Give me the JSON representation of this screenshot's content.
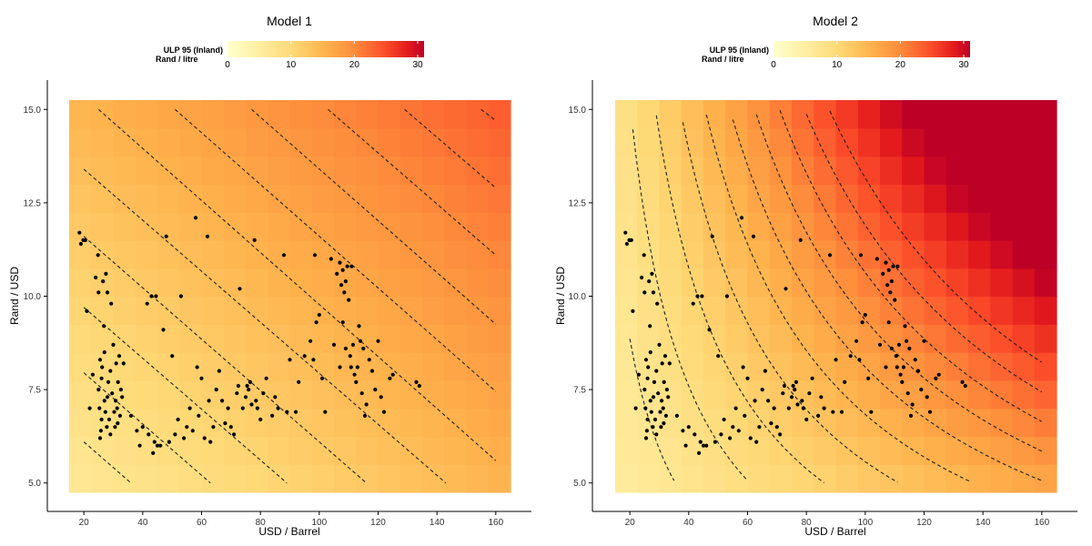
{
  "chart_data": [
    {
      "type": "heatmap",
      "title": "Model 1",
      "xlabel": "USD / Barrel",
      "ylabel": "Rand / USD",
      "xlim": [
        15,
        165
      ],
      "ylim": [
        4.75,
        15.25
      ],
      "x_ticks": [
        20,
        40,
        60,
        80,
        100,
        120,
        140,
        160
      ],
      "x_tick_labels": [
        "20",
        "40",
        "60",
        "80",
        "100",
        "120",
        "140",
        "160"
      ],
      "y_ticks": [
        5.0,
        7.5,
        10.0,
        12.5,
        15.0
      ],
      "y_tick_labels": [
        "5.0",
        "7.5",
        "10.0",
        "12.5",
        "15.0"
      ],
      "legend": {
        "title_line1": "ULP 95 (Inland)",
        "title_line2": "Rand / litre",
        "range": [
          0,
          31
        ],
        "ticks": [
          0,
          10,
          20,
          30
        ],
        "tick_labels": [
          "0",
          "10",
          "20",
          "30"
        ],
        "placement": "top"
      },
      "fill_model": "additive",
      "contour_segments": [
        [
          [
            20,
            6.1
          ],
          [
            36,
            5.0
          ]
        ],
        [
          [
            20,
            7.95
          ],
          [
            63,
            5.0
          ]
        ],
        [
          [
            20,
            9.7
          ],
          [
            89,
            5.0
          ]
        ],
        [
          [
            20,
            11.6
          ],
          [
            116,
            5.0
          ]
        ],
        [
          [
            20,
            13.4
          ],
          [
            143,
            5.0
          ]
        ],
        [
          [
            25,
            15.0
          ],
          [
            160,
            5.6
          ]
        ],
        [
          [
            51,
            15.0
          ],
          [
            160,
            7.45
          ]
        ],
        [
          [
            77,
            15.0
          ],
          [
            160,
            9.25
          ]
        ],
        [
          [
            103,
            15.0
          ],
          [
            160,
            11.1
          ]
        ],
        [
          [
            129,
            15.0
          ],
          [
            160,
            12.9
          ]
        ],
        [
          [
            155,
            15.0
          ],
          [
            160,
            14.7
          ]
        ]
      ],
      "points": [
        [
          18.5,
          11.7
        ],
        [
          19,
          11.4
        ],
        [
          19.8,
          11.5
        ],
        [
          20.5,
          11.5
        ],
        [
          21,
          9.6
        ],
        [
          22,
          7.0
        ],
        [
          23,
          7.9
        ],
        [
          24,
          10.5
        ],
        [
          24.8,
          11.1
        ],
        [
          25,
          10.1
        ],
        [
          25.5,
          6.2
        ],
        [
          25.8,
          6.4
        ],
        [
          26,
          7.8
        ],
        [
          26.2,
          8.1
        ],
        [
          26.5,
          10.4
        ],
        [
          26.8,
          9.2
        ],
        [
          27,
          7.2
        ],
        [
          27.3,
          6.9
        ],
        [
          27.5,
          10.6
        ],
        [
          28,
          10.1
        ],
        [
          28.3,
          7.7
        ],
        [
          28.6,
          6.7
        ],
        [
          29,
          8.0
        ],
        [
          29.3,
          9.8
        ],
        [
          29.6,
          7.4
        ],
        [
          30,
          8.7
        ],
        [
          30.3,
          6.9
        ],
        [
          30.6,
          6.5
        ],
        [
          31,
          8.2
        ],
        [
          31.3,
          7.0
        ],
        [
          31.6,
          7.7
        ],
        [
          32,
          8.4
        ],
        [
          32.3,
          6.8
        ],
        [
          32.6,
          7.5
        ],
        [
          33,
          7.3
        ],
        [
          33.5,
          8.2
        ],
        [
          25,
          7.5
        ],
        [
          25.3,
          7.0
        ],
        [
          26,
          6.7
        ],
        [
          27,
          8.5
        ],
        [
          28,
          7.3
        ],
        [
          29,
          6.3
        ],
        [
          30.8,
          7.2
        ],
        [
          31.5,
          6.6
        ],
        [
          25.5,
          8.3
        ],
        [
          27.8,
          6.5
        ],
        [
          36,
          6.8
        ],
        [
          38,
          6.4
        ],
        [
          39,
          6.0
        ],
        [
          40,
          6.5
        ],
        [
          41.5,
          9.8
        ],
        [
          42,
          6.3
        ],
        [
          43,
          10.0
        ],
        [
          43.5,
          5.8
        ],
        [
          44,
          6.1
        ],
        [
          44.5,
          10.0
        ],
        [
          45,
          6.0
        ],
        [
          46,
          6.0
        ],
        [
          47,
          9.1
        ],
        [
          48,
          11.6
        ],
        [
          49,
          6.1
        ],
        [
          50,
          8.4
        ],
        [
          51,
          6.3
        ],
        [
          52,
          6.7
        ],
        [
          53,
          10.0
        ],
        [
          54,
          6.2
        ],
        [
          55,
          6.5
        ],
        [
          56,
          7.0
        ],
        [
          57,
          6.4
        ],
        [
          58,
          12.1
        ],
        [
          58.5,
          8.1
        ],
        [
          59,
          6.8
        ],
        [
          60,
          7.8
        ],
        [
          61,
          6.2
        ],
        [
          62,
          11.6
        ],
        [
          62.5,
          7.2
        ],
        [
          63,
          6.1
        ],
        [
          64,
          6.5
        ],
        [
          65,
          7.5
        ],
        [
          66,
          8.0
        ],
        [
          67,
          7.2
        ],
        [
          68,
          6.6
        ],
        [
          69,
          7.0
        ],
        [
          70,
          6.5
        ],
        [
          71,
          6.3
        ],
        [
          72,
          7.4
        ],
        [
          72.5,
          7.6
        ],
        [
          73,
          10.2
        ],
        [
          74,
          7.0
        ],
        [
          75,
          7.3
        ],
        [
          75.5,
          7.6
        ],
        [
          76,
          7.5
        ],
        [
          76.5,
          7.7
        ],
        [
          77,
          7.1
        ],
        [
          78,
          11.5
        ],
        [
          78.5,
          7.2
        ],
        [
          79,
          7.0
        ],
        [
          80,
          6.7
        ],
        [
          81,
          7.4
        ],
        [
          82,
          7.8
        ],
        [
          84,
          6.8
        ],
        [
          85,
          7.3
        ],
        [
          86,
          7.0
        ],
        [
          88,
          11.1
        ],
        [
          89,
          6.9
        ],
        [
          90,
          8.3
        ],
        [
          92,
          6.9
        ],
        [
          93,
          7.7
        ],
        [
          95,
          8.4
        ],
        [
          97,
          8.8
        ],
        [
          98,
          8.3
        ],
        [
          98.5,
          11.1
        ],
        [
          99,
          9.3
        ],
        [
          100,
          9.5
        ],
        [
          101,
          7.8
        ],
        [
          102,
          6.9
        ],
        [
          104,
          11.0
        ],
        [
          105,
          8.7
        ],
        [
          106,
          10.6
        ],
        [
          107,
          10.9
        ],
        [
          107.5,
          10.3
        ],
        [
          108,
          10.7
        ],
        [
          108.5,
          10.1
        ],
        [
          109,
          10.4
        ],
        [
          109.5,
          10.8
        ],
        [
          110,
          9.9
        ],
        [
          110.5,
          8.4
        ],
        [
          111,
          10.8
        ],
        [
          111.5,
          8.7
        ],
        [
          112,
          7.9
        ],
        [
          112.5,
          7.7
        ],
        [
          113,
          8.1
        ],
        [
          113.5,
          9.2
        ],
        [
          114,
          8.8
        ],
        [
          114.5,
          7.4
        ],
        [
          115,
          8.6
        ],
        [
          115.5,
          6.8
        ],
        [
          116,
          7.1
        ],
        [
          117,
          8.3
        ],
        [
          118,
          8.0
        ],
        [
          119,
          7.5
        ],
        [
          120,
          8.8
        ],
        [
          121,
          7.3
        ],
        [
          122,
          6.9
        ],
        [
          124,
          7.8
        ],
        [
          125,
          7.9
        ],
        [
          133,
          7.7
        ],
        [
          134,
          7.6
        ],
        [
          107,
          8.1
        ],
        [
          108,
          9.3
        ],
        [
          109,
          8.6
        ],
        [
          110.8,
          8.1
        ]
      ]
    },
    {
      "type": "heatmap",
      "title": "Model 2",
      "xlabel": "USD / Barrel",
      "ylabel": "Rand / USD",
      "xlim": [
        15,
        165
      ],
      "ylim": [
        4.75,
        15.25
      ],
      "x_ticks": [
        20,
        40,
        60,
        80,
        100,
        120,
        140,
        160
      ],
      "x_tick_labels": [
        "20",
        "40",
        "60",
        "80",
        "100",
        "120",
        "140",
        "160"
      ],
      "y_ticks": [
        5.0,
        7.5,
        10.0,
        12.5,
        15.0
      ],
      "y_tick_labels": [
        "5.0",
        "7.5",
        "10.0",
        "12.5",
        "15.0"
      ],
      "legend": {
        "title_line1": "ULP 95 (Inland)",
        "title_line2": "Rand / litre",
        "range": [
          0,
          31
        ],
        "ticks": [
          0,
          10,
          20,
          30
        ],
        "tick_labels": [
          "0",
          "10",
          "20",
          "30"
        ],
        "placement": "top"
      },
      "fill_model": "multiplicative",
      "contour_levels": [
        5,
        7,
        9,
        11,
        13,
        15,
        17,
        19,
        21,
        23,
        25
      ],
      "points": [
        [
          18.5,
          11.7
        ],
        [
          19,
          11.4
        ],
        [
          19.8,
          11.5
        ],
        [
          20.5,
          11.5
        ],
        [
          21,
          9.6
        ],
        [
          22,
          7.0
        ],
        [
          23,
          7.9
        ],
        [
          24,
          10.5
        ],
        [
          24.8,
          11.1
        ],
        [
          25,
          10.1
        ],
        [
          25.5,
          6.2
        ],
        [
          25.8,
          6.4
        ],
        [
          26,
          7.8
        ],
        [
          26.2,
          8.1
        ],
        [
          26.5,
          10.4
        ],
        [
          26.8,
          9.2
        ],
        [
          27,
          7.2
        ],
        [
          27.3,
          6.9
        ],
        [
          27.5,
          10.6
        ],
        [
          28,
          10.1
        ],
        [
          28.3,
          7.7
        ],
        [
          28.6,
          6.7
        ],
        [
          29,
          8.0
        ],
        [
          29.3,
          9.8
        ],
        [
          29.6,
          7.4
        ],
        [
          30,
          8.7
        ],
        [
          30.3,
          6.9
        ],
        [
          30.6,
          6.5
        ],
        [
          31,
          8.2
        ],
        [
          31.3,
          7.0
        ],
        [
          31.6,
          7.7
        ],
        [
          32,
          8.4
        ],
        [
          32.3,
          6.8
        ],
        [
          32.6,
          7.5
        ],
        [
          33,
          7.3
        ],
        [
          33.5,
          8.2
        ],
        [
          25,
          7.5
        ],
        [
          25.3,
          7.0
        ],
        [
          26,
          6.7
        ],
        [
          27,
          8.5
        ],
        [
          28,
          7.3
        ],
        [
          29,
          6.3
        ],
        [
          30.8,
          7.2
        ],
        [
          31.5,
          6.6
        ],
        [
          25.5,
          8.3
        ],
        [
          27.8,
          6.5
        ],
        [
          36,
          6.8
        ],
        [
          38,
          6.4
        ],
        [
          39,
          6.0
        ],
        [
          40,
          6.5
        ],
        [
          41.5,
          9.8
        ],
        [
          42,
          6.3
        ],
        [
          43,
          10.0
        ],
        [
          43.5,
          5.8
        ],
        [
          44,
          6.1
        ],
        [
          44.5,
          10.0
        ],
        [
          45,
          6.0
        ],
        [
          46,
          6.0
        ],
        [
          47,
          9.1
        ],
        [
          48,
          11.6
        ],
        [
          49,
          6.1
        ],
        [
          50,
          8.4
        ],
        [
          51,
          6.3
        ],
        [
          52,
          6.7
        ],
        [
          53,
          10.0
        ],
        [
          54,
          6.2
        ],
        [
          55,
          6.5
        ],
        [
          56,
          7.0
        ],
        [
          57,
          6.4
        ],
        [
          58,
          12.1
        ],
        [
          58.5,
          8.1
        ],
        [
          59,
          6.8
        ],
        [
          60,
          7.8
        ],
        [
          61,
          6.2
        ],
        [
          62,
          11.6
        ],
        [
          62.5,
          7.2
        ],
        [
          63,
          6.1
        ],
        [
          64,
          6.5
        ],
        [
          65,
          7.5
        ],
        [
          66,
          8.0
        ],
        [
          67,
          7.2
        ],
        [
          68,
          6.6
        ],
        [
          69,
          7.0
        ],
        [
          70,
          6.5
        ],
        [
          71,
          6.3
        ],
        [
          72,
          7.4
        ],
        [
          72.5,
          7.6
        ],
        [
          73,
          10.2
        ],
        [
          74,
          7.0
        ],
        [
          75,
          7.3
        ],
        [
          75.5,
          7.6
        ],
        [
          76,
          7.5
        ],
        [
          76.5,
          7.7
        ],
        [
          77,
          7.1
        ],
        [
          78,
          11.5
        ],
        [
          78.5,
          7.2
        ],
        [
          79,
          7.0
        ],
        [
          80,
          6.7
        ],
        [
          81,
          7.4
        ],
        [
          82,
          7.8
        ],
        [
          84,
          6.8
        ],
        [
          85,
          7.3
        ],
        [
          86,
          7.0
        ],
        [
          88,
          11.1
        ],
        [
          89,
          6.9
        ],
        [
          90,
          8.3
        ],
        [
          92,
          6.9
        ],
        [
          93,
          7.7
        ],
        [
          95,
          8.4
        ],
        [
          97,
          8.8
        ],
        [
          98,
          8.3
        ],
        [
          98.5,
          11.1
        ],
        [
          99,
          9.3
        ],
        [
          100,
          9.5
        ],
        [
          101,
          7.8
        ],
        [
          102,
          6.9
        ],
        [
          104,
          11.0
        ],
        [
          105,
          8.7
        ],
        [
          106,
          10.6
        ],
        [
          107,
          10.9
        ],
        [
          107.5,
          10.3
        ],
        [
          108,
          10.7
        ],
        [
          108.5,
          10.1
        ],
        [
          109,
          10.4
        ],
        [
          109.5,
          10.8
        ],
        [
          110,
          9.9
        ],
        [
          110.5,
          8.4
        ],
        [
          111,
          10.8
        ],
        [
          111.5,
          8.7
        ],
        [
          112,
          7.9
        ],
        [
          112.5,
          7.7
        ],
        [
          113,
          8.1
        ],
        [
          113.5,
          9.2
        ],
        [
          114,
          8.8
        ],
        [
          114.5,
          7.4
        ],
        [
          115,
          8.6
        ],
        [
          115.5,
          6.8
        ],
        [
          116,
          7.1
        ],
        [
          117,
          8.3
        ],
        [
          118,
          8.0
        ],
        [
          119,
          7.5
        ],
        [
          120,
          8.8
        ],
        [
          121,
          7.3
        ],
        [
          122,
          6.9
        ],
        [
          124,
          7.8
        ],
        [
          125,
          7.9
        ],
        [
          133,
          7.7
        ],
        [
          134,
          7.6
        ],
        [
          107,
          8.1
        ],
        [
          108,
          9.3
        ],
        [
          109,
          8.6
        ],
        [
          110.8,
          8.1
        ]
      ]
    }
  ],
  "colors": {
    "scale": [
      "#ffffcc",
      "#ffeda0",
      "#fed976",
      "#feb24c",
      "#fd8d3c",
      "#fc4e2a",
      "#e31a1c",
      "#bd0026"
    ],
    "points": "#000000",
    "contour": "#222222",
    "axis": "#000000"
  }
}
